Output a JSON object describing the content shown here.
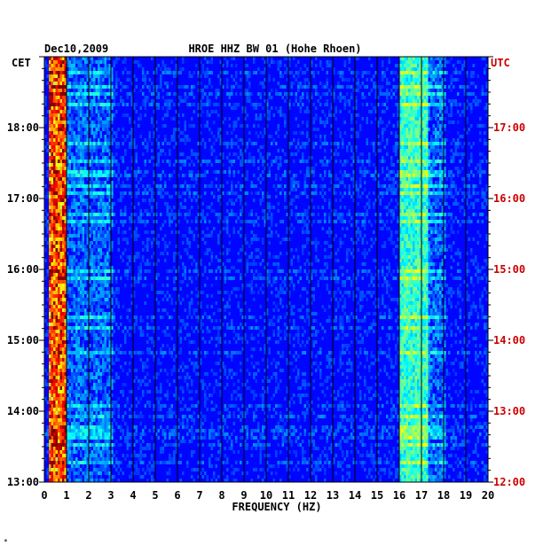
{
  "chart_data": {
    "type": "heatmap",
    "title_left": "Dec10,2009",
    "title": "HROE HHZ BW 01 (Hohe Rhoen)",
    "left_axis_label": "CET",
    "right_axis_label": "UTC",
    "xlabel": "FREQUENCY (HZ)",
    "xlim": [
      0,
      20
    ],
    "x_ticks": [
      "0",
      "1",
      "2",
      "3",
      "4",
      "5",
      "6",
      "7",
      "8",
      "9",
      "10",
      "11",
      "12",
      "13",
      "14",
      "15",
      "16",
      "17",
      "18",
      "19",
      "20"
    ],
    "y_ticks_cet": [
      "13:00",
      "14:00",
      "15:00",
      "16:00",
      "17:00",
      "18:00"
    ],
    "y_ticks_utc": [
      "12:00",
      "13:00",
      "14:00",
      "15:00",
      "16:00",
      "17:00"
    ],
    "cet_range": [
      "13:00",
      "19:00"
    ],
    "grid": true,
    "colors": {
      "cet": "#000000",
      "utc": "#cc0000",
      "grid": "#000000"
    },
    "energy_bands_hz": [
      {
        "from": 0.2,
        "to": 0.9,
        "level": "very high"
      },
      {
        "from": 1.0,
        "to": 3.0,
        "level": "moderate"
      },
      {
        "from": 16.0,
        "to": 17.2,
        "level": "high"
      },
      {
        "from": 17.2,
        "to": 18.0,
        "level": "moderate"
      }
    ],
    "footnote": "*"
  }
}
